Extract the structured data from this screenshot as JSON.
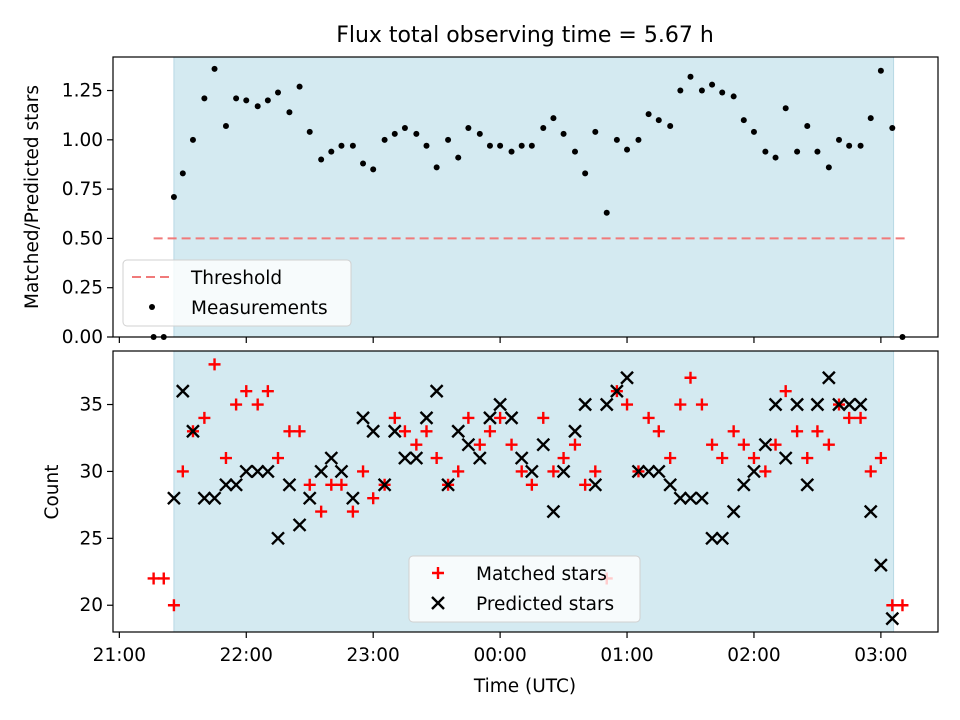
{
  "chart_data": [
    {
      "type": "scatter",
      "title": "Flux total observing time = 5.67 h",
      "xlabel": "",
      "ylabel": "Matched/Predicted stars",
      "xlim": [
        -0.05,
        6.45
      ],
      "ylim": [
        0,
        1.42
      ],
      "x_unit": "hours after 21:00 UTC",
      "yticks": [
        "0.00",
        "0.25",
        "0.50",
        "0.75",
        "1.00",
        "1.25"
      ],
      "shaded_region": {
        "x_start": 0.43,
        "x_end": 6.1,
        "color": "#d4eaf1"
      },
      "threshold": {
        "name": "Threshold",
        "value": 0.5,
        "x_start": 0.27,
        "x_end": 6.2,
        "color": "#f07a7a",
        "style": "dashed"
      },
      "legend_location": "lower-left",
      "series": [
        {
          "name": "Measurements",
          "color": "#000000",
          "marker": "dot",
          "x": [
            0.27,
            0.35,
            0.43,
            0.5,
            0.58,
            0.67,
            0.75,
            0.84,
            0.92,
            1.0,
            1.09,
            1.17,
            1.25,
            1.34,
            1.42,
            1.5,
            1.59,
            1.67,
            1.75,
            1.84,
            1.92,
            2.0,
            2.09,
            2.17,
            2.25,
            2.34,
            2.42,
            2.5,
            2.59,
            2.67,
            2.75,
            2.84,
            2.92,
            3.0,
            3.09,
            3.17,
            3.25,
            3.34,
            3.42,
            3.5,
            3.59,
            3.67,
            3.75,
            3.84,
            3.92,
            4.0,
            4.09,
            4.17,
            4.25,
            4.34,
            4.42,
            4.5,
            4.59,
            4.67,
            4.75,
            4.84,
            4.92,
            5.0,
            5.09,
            5.17,
            5.25,
            5.34,
            5.42,
            5.5,
            5.59,
            5.67,
            5.75,
            5.84,
            5.92,
            6.0,
            6.09,
            6.17
          ],
          "y": [
            0.0,
            0.0,
            0.71,
            0.83,
            1.0,
            1.21,
            1.36,
            1.07,
            1.21,
            1.2,
            1.17,
            1.2,
            1.24,
            1.14,
            1.27,
            1.04,
            0.9,
            0.94,
            0.97,
            0.97,
            0.88,
            0.85,
            1.0,
            1.03,
            1.06,
            1.03,
            0.97,
            0.86,
            1.0,
            0.91,
            1.06,
            1.03,
            0.97,
            0.97,
            0.94,
            0.97,
            0.97,
            1.06,
            1.11,
            1.03,
            0.94,
            0.83,
            1.04,
            0.63,
            1.0,
            0.95,
            1.0,
            1.13,
            1.1,
            1.07,
            1.25,
            1.32,
            1.25,
            1.28,
            1.24,
            1.22,
            1.1,
            1.04,
            0.94,
            0.91,
            1.16,
            0.94,
            1.07,
            0.94,
            0.86,
            1.0,
            0.97,
            0.97,
            1.11,
            1.35,
            1.06,
            0.0
          ]
        }
      ]
    },
    {
      "type": "scatter",
      "title": "",
      "xlabel": "Time (UTC)",
      "ylabel": "Count",
      "xlim": [
        -0.05,
        6.45
      ],
      "ylim": [
        18,
        39
      ],
      "x_unit": "hours after 21:00 UTC",
      "xticks": [
        "21:00",
        "22:00",
        "23:00",
        "00:00",
        "01:00",
        "02:00",
        "03:00"
      ],
      "yticks": [
        "20",
        "25",
        "30",
        "35"
      ],
      "shaded_region": {
        "x_start": 0.43,
        "x_end": 6.1,
        "color": "#d4eaf1"
      },
      "legend_location": "lower-center",
      "series": [
        {
          "name": "Matched stars",
          "color": "#ff0000",
          "marker": "plus",
          "x": [
            0.27,
            0.35,
            0.43,
            0.5,
            0.58,
            0.67,
            0.75,
            0.84,
            0.92,
            1.0,
            1.09,
            1.17,
            1.25,
            1.34,
            1.42,
            1.5,
            1.59,
            1.67,
            1.75,
            1.84,
            1.92,
            2.0,
            2.09,
            2.17,
            2.25,
            2.34,
            2.42,
            2.5,
            2.59,
            2.67,
            2.75,
            2.84,
            2.92,
            3.0,
            3.09,
            3.17,
            3.25,
            3.34,
            3.42,
            3.5,
            3.59,
            3.67,
            3.75,
            3.84,
            3.92,
            4.0,
            4.09,
            4.17,
            4.25,
            4.34,
            4.42,
            4.5,
            4.59,
            4.67,
            4.75,
            4.84,
            4.92,
            5.0,
            5.09,
            5.17,
            5.25,
            5.34,
            5.42,
            5.5,
            5.59,
            5.67,
            5.75,
            5.84,
            5.92,
            6.0,
            6.09,
            6.17
          ],
          "y": [
            22,
            22,
            20,
            30,
            33,
            34,
            38,
            31,
            35,
            36,
            35,
            36,
            31,
            33,
            33,
            29,
            27,
            29,
            29,
            27,
            30,
            28,
            29,
            34,
            33,
            32,
            33,
            31,
            29,
            30,
            34,
            32,
            33,
            34,
            32,
            30,
            29,
            34,
            30,
            31,
            32,
            29,
            30,
            22,
            36,
            35,
            30,
            34,
            33,
            31,
            35,
            37,
            35,
            32,
            31,
            33,
            32,
            31,
            30,
            32,
            36,
            33,
            31,
            33,
            32,
            35,
            34,
            34,
            30,
            31,
            20,
            20
          ]
        },
        {
          "name": "Predicted stars",
          "color": "#000000",
          "marker": "x",
          "x": [
            0.43,
            0.5,
            0.58,
            0.67,
            0.75,
            0.84,
            0.92,
            1.0,
            1.09,
            1.17,
            1.25,
            1.34,
            1.42,
            1.5,
            1.59,
            1.67,
            1.75,
            1.84,
            1.92,
            2.0,
            2.09,
            2.17,
            2.25,
            2.34,
            2.42,
            2.5,
            2.59,
            2.67,
            2.75,
            2.84,
            2.92,
            3.0,
            3.09,
            3.17,
            3.25,
            3.34,
            3.42,
            3.5,
            3.59,
            3.67,
            3.75,
            3.84,
            3.92,
            4.0,
            4.09,
            4.17,
            4.25,
            4.34,
            4.42,
            4.5,
            4.59,
            4.67,
            4.75,
            4.84,
            4.92,
            5.0,
            5.09,
            5.17,
            5.25,
            5.34,
            5.42,
            5.5,
            5.59,
            5.67,
            5.75,
            5.84,
            5.92,
            6.0,
            6.09
          ],
          "y": [
            28,
            36,
            33,
            28,
            28,
            29,
            29,
            30,
            30,
            30,
            25,
            29,
            26,
            28,
            30,
            31,
            30,
            28,
            34,
            33,
            29,
            33,
            31,
            31,
            34,
            36,
            29,
            33,
            32,
            31,
            34,
            35,
            34,
            31,
            30,
            32,
            27,
            30,
            33,
            35,
            29,
            35,
            36,
            37,
            30,
            30,
            30,
            29,
            28,
            28,
            28,
            25,
            25,
            27,
            29,
            30,
            32,
            35,
            31,
            35,
            29,
            35,
            37,
            35,
            35,
            35,
            27,
            23,
            19
          ]
        }
      ]
    }
  ]
}
